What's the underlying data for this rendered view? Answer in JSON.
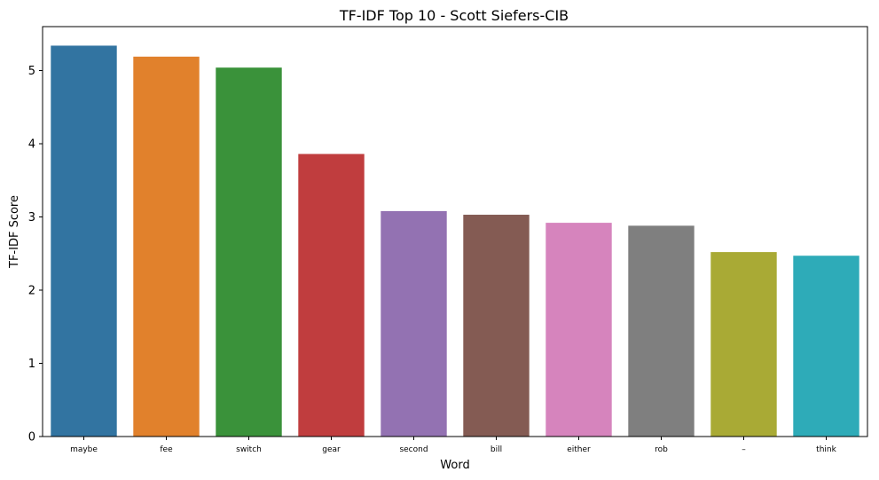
{
  "chart_data": {
    "type": "bar",
    "title": "TF-IDF Top 10 - Scott Siefers-CIB",
    "xlabel": "Word",
    "ylabel": "TF-IDF Score",
    "categories": [
      "maybe",
      "fee",
      "switch",
      "gear",
      "second",
      "bill",
      "either",
      "rob",
      "–",
      "think"
    ],
    "values": [
      5.34,
      5.19,
      5.04,
      3.86,
      3.08,
      3.03,
      2.92,
      2.88,
      2.52,
      2.47
    ],
    "colors": [
      "#3274a1",
      "#e1812c",
      "#3a923a",
      "#c03d3e",
      "#9372b2",
      "#845b53",
      "#d684bd",
      "#7f7f7f",
      "#a9aa35",
      "#2eabb8"
    ],
    "yticks": [
      0,
      1,
      2,
      3,
      4,
      5
    ],
    "ylim": [
      0,
      5.6
    ],
    "grid": false,
    "legend": "none"
  }
}
